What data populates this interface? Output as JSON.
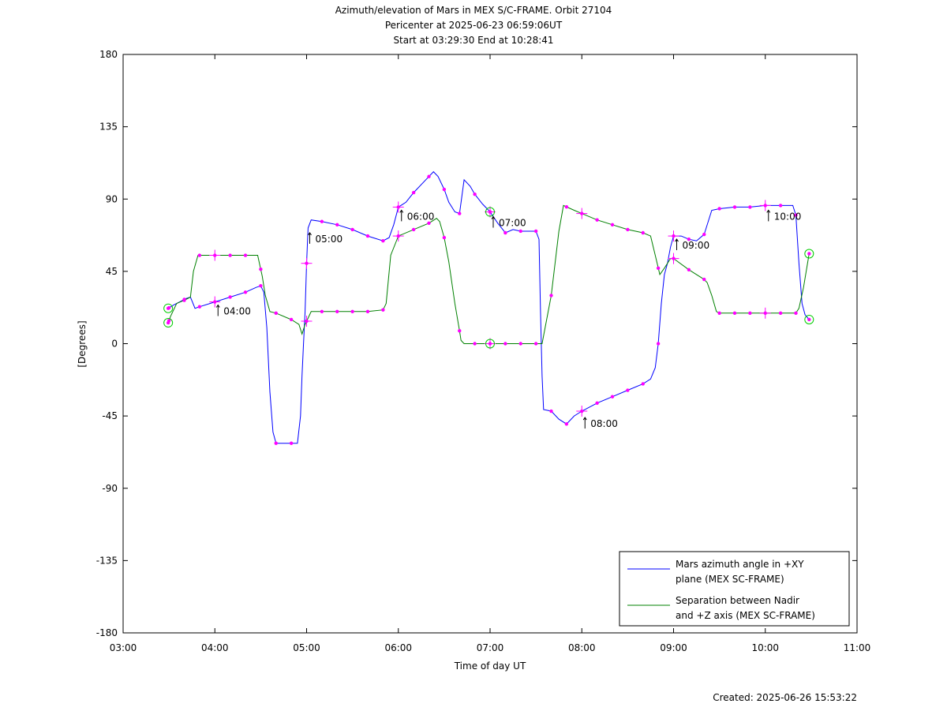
{
  "chart_data": {
    "type": "line",
    "title_lines": [
      "Azimuth/elevation of Mars in MEX S/C-FRAME.  Orbit 27104",
      "Pericenter at 2025-06-23 06:59:06UT",
      "Start at 03:29:30 End at 10:28:41"
    ],
    "xlabel": "Time of day UT",
    "ylabel": "[Degrees]",
    "footer": "Created: 2025-06-26 15:53:22",
    "xlim": [
      "03:00",
      "11:00"
    ],
    "ylim": [
      -180,
      180
    ],
    "x_ticks": [
      "03:00",
      "04:00",
      "05:00",
      "06:00",
      "07:00",
      "08:00",
      "09:00",
      "10:00",
      "11:00"
    ],
    "y_ticks": [
      180,
      135,
      90,
      45,
      0,
      -45,
      -90,
      -135,
      -180
    ],
    "grid": false,
    "legend_position": "bottom-right",
    "marker_color": "#ff00ff",
    "circle_marker_color": "#00cc00",
    "series": [
      {
        "name": "Mars azimuth angle in +XY plane (MEX SC-FRAME)",
        "legend_lines": [
          "Mars azimuth angle in +XY",
          "plane (MEX SC-FRAME)"
        ],
        "color": "#0000ff",
        "points": [
          [
            "03:29:30",
            22
          ],
          [
            "03:33",
            24
          ],
          [
            "03:37",
            26
          ],
          [
            "03:41",
            28
          ],
          [
            "03:44",
            29
          ],
          [
            "03:47",
            22
          ],
          [
            "03:50",
            23
          ],
          [
            "04:00",
            26
          ],
          [
            "04:10",
            29
          ],
          [
            "04:20",
            32
          ],
          [
            "04:27",
            35
          ],
          [
            "04:30",
            36
          ],
          [
            "04:32",
            32
          ],
          [
            "04:34",
            10
          ],
          [
            "04:36",
            -30
          ],
          [
            "04:38",
            -55
          ],
          [
            "04:40",
            -62
          ],
          [
            "04:50",
            -62
          ],
          [
            "04:54",
            -62
          ],
          [
            "04:56",
            -45
          ],
          [
            "04:57",
            -20
          ],
          [
            "04:58",
            0
          ],
          [
            "04:59",
            20
          ],
          [
            "05:00",
            50
          ],
          [
            "05:01",
            72
          ],
          [
            "05:03",
            77
          ],
          [
            "05:10",
            76
          ],
          [
            "05:20",
            74
          ],
          [
            "05:30",
            71
          ],
          [
            "05:40",
            67
          ],
          [
            "05:50",
            64
          ],
          [
            "05:54",
            66
          ],
          [
            "05:57",
            74
          ],
          [
            "06:00",
            85
          ],
          [
            "06:05",
            88
          ],
          [
            "06:10",
            94
          ],
          [
            "06:18",
            102
          ],
          [
            "06:23",
            107
          ],
          [
            "06:26",
            104
          ],
          [
            "06:30",
            96
          ],
          [
            "06:33",
            88
          ],
          [
            "06:37",
            82
          ],
          [
            "06:40",
            81
          ],
          [
            "06:43",
            102
          ],
          [
            "06:47",
            98
          ],
          [
            "06:50",
            93
          ],
          [
            "06:55",
            87
          ],
          [
            "07:00",
            82
          ],
          [
            "07:05",
            75
          ],
          [
            "07:10",
            69
          ],
          [
            "07:15",
            71
          ],
          [
            "07:20",
            70
          ],
          [
            "07:25",
            70
          ],
          [
            "07:30",
            70
          ],
          [
            "07:32",
            65
          ],
          [
            "07:33",
            20
          ],
          [
            "07:34",
            -20
          ],
          [
            "07:35",
            -41
          ],
          [
            "07:40",
            -42
          ],
          [
            "07:45",
            -47
          ],
          [
            "07:50",
            -50
          ],
          [
            "07:55",
            -45
          ],
          [
            "08:00",
            -42
          ],
          [
            "08:10",
            -37
          ],
          [
            "08:20",
            -33
          ],
          [
            "08:30",
            -29
          ],
          [
            "08:40",
            -25
          ],
          [
            "08:45",
            -22
          ],
          [
            "08:48",
            -15
          ],
          [
            "08:50",
            0
          ],
          [
            "08:52",
            25
          ],
          [
            "08:54",
            43
          ],
          [
            "08:56",
            50
          ],
          [
            "08:58",
            60
          ],
          [
            "09:00",
            67
          ],
          [
            "09:05",
            67
          ],
          [
            "09:10",
            65
          ],
          [
            "09:15",
            64
          ],
          [
            "09:20",
            68
          ],
          [
            "09:25",
            83
          ],
          [
            "09:30",
            84
          ],
          [
            "09:40",
            85
          ],
          [
            "09:50",
            85
          ],
          [
            "10:00",
            86
          ],
          [
            "10:10",
            86
          ],
          [
            "10:18",
            86
          ],
          [
            "10:20",
            80
          ],
          [
            "10:22",
            50
          ],
          [
            "10:24",
            25
          ],
          [
            "10:26",
            18
          ],
          [
            "10:28:41",
            15
          ]
        ],
        "markers": [
          "03:30",
          "03:40",
          "03:50",
          "04:00",
          "04:10",
          "04:20",
          "04:30",
          "04:40",
          "04:50",
          "05:00",
          "05:10",
          "05:20",
          "05:30",
          "05:40",
          "05:50",
          "06:00",
          "06:10",
          "06:20",
          "06:30",
          "06:40",
          "06:50",
          "07:00",
          "07:10",
          "07:20",
          "07:30",
          "07:40",
          "07:50",
          "08:00",
          "08:10",
          "08:20",
          "08:30",
          "08:40",
          "08:50",
          "09:00",
          "09:10",
          "09:20",
          "09:30",
          "09:40",
          "09:50",
          "10:00",
          "10:10",
          "10:20"
        ]
      },
      {
        "name": "Separation between Nadir and +Z axis (MEX SC-FRAME)",
        "legend_lines": [
          "Separation between Nadir",
          "and +Z axis (MEX SC-FRAME)"
        ],
        "color": "#008000",
        "points": [
          [
            "03:29:30",
            13
          ],
          [
            "03:31",
            17
          ],
          [
            "03:35",
            25
          ],
          [
            "03:40",
            27
          ],
          [
            "03:44",
            29
          ],
          [
            "03:46",
            45
          ],
          [
            "03:49",
            55
          ],
          [
            "04:00",
            55
          ],
          [
            "04:10",
            55
          ],
          [
            "04:20",
            55
          ],
          [
            "04:25",
            55
          ],
          [
            "04:28",
            55
          ],
          [
            "04:31",
            42
          ],
          [
            "04:33",
            30
          ],
          [
            "04:36",
            20
          ],
          [
            "04:40",
            19
          ],
          [
            "04:50",
            15
          ],
          [
            "04:55",
            12
          ],
          [
            "04:57",
            6
          ],
          [
            "04:59",
            12
          ],
          [
            "05:03",
            20
          ],
          [
            "05:10",
            20
          ],
          [
            "05:20",
            20
          ],
          [
            "05:30",
            20
          ],
          [
            "05:40",
            20
          ],
          [
            "05:50",
            21
          ],
          [
            "05:52",
            25
          ],
          [
            "05:55",
            55
          ],
          [
            "06:00",
            67
          ],
          [
            "06:10",
            71
          ],
          [
            "06:20",
            75
          ],
          [
            "06:25",
            78
          ],
          [
            "06:27",
            76
          ],
          [
            "06:30",
            66
          ],
          [
            "06:33",
            51
          ],
          [
            "06:37",
            25
          ],
          [
            "06:40",
            8
          ],
          [
            "06:41",
            2
          ],
          [
            "06:43",
            0
          ],
          [
            "06:50",
            0
          ],
          [
            "07:00",
            0
          ],
          [
            "07:10",
            0
          ],
          [
            "07:20",
            0
          ],
          [
            "07:30",
            0
          ],
          [
            "07:34",
            0
          ],
          [
            "07:37",
            15
          ],
          [
            "07:40",
            30
          ],
          [
            "07:45",
            70
          ],
          [
            "07:48",
            86
          ],
          [
            "07:55",
            83
          ],
          [
            "08:00",
            81
          ],
          [
            "08:10",
            77
          ],
          [
            "08:20",
            74
          ],
          [
            "08:30",
            71
          ],
          [
            "08:40",
            69
          ],
          [
            "08:45",
            67
          ],
          [
            "08:48",
            55
          ],
          [
            "08:51",
            43
          ],
          [
            "08:54",
            47
          ],
          [
            "08:58",
            53
          ],
          [
            "09:00",
            53
          ],
          [
            "09:10",
            46
          ],
          [
            "09:20",
            40
          ],
          [
            "09:22",
            38
          ],
          [
            "09:25",
            30
          ],
          [
            "09:28",
            20
          ],
          [
            "09:30",
            19
          ],
          [
            "09:40",
            19
          ],
          [
            "09:50",
            19
          ],
          [
            "10:00",
            19
          ],
          [
            "10:10",
            19
          ],
          [
            "10:20",
            19
          ],
          [
            "10:22",
            22
          ],
          [
            "10:25",
            35
          ],
          [
            "10:28:41",
            56
          ]
        ],
        "markers": [
          "03:30",
          "03:40",
          "03:50",
          "04:00",
          "04:10",
          "04:20",
          "04:30",
          "04:40",
          "04:50",
          "05:00",
          "05:10",
          "05:20",
          "05:30",
          "05:40",
          "05:50",
          "06:00",
          "06:10",
          "06:20",
          "06:30",
          "06:40",
          "06:50",
          "07:00",
          "07:10",
          "07:20",
          "07:30",
          "07:40",
          "07:50",
          "08:00",
          "08:10",
          "08:20",
          "08:30",
          "08:40",
          "08:50",
          "09:00",
          "09:10",
          "09:20",
          "09:30",
          "09:40",
          "09:50",
          "10:00",
          "10:10",
          "10:20"
        ]
      }
    ],
    "hour_markers": [
      "04:00",
      "05:00",
      "06:00",
      "07:00",
      "08:00",
      "09:00",
      "10:00"
    ],
    "annotations": [
      {
        "time": "04:00",
        "text": "04:00",
        "y": 27
      },
      {
        "time": "05:00",
        "text": "05:00",
        "y": 72
      },
      {
        "time": "06:00",
        "text": "06:00",
        "y": 86
      },
      {
        "time": "07:00",
        "text": "07:00",
        "y": 82
      },
      {
        "time": "08:00",
        "text": "08:00",
        "y": -43
      },
      {
        "time": "09:00",
        "text": "09:00",
        "y": 68
      },
      {
        "time": "10:00",
        "text": "10:00",
        "y": 86
      }
    ],
    "circle_markers": [
      {
        "time": "03:29:30",
        "y": 22
      },
      {
        "time": "03:29:30",
        "y": 13
      },
      {
        "time": "07:00",
        "y": 82
      },
      {
        "time": "07:00",
        "y": 0
      },
      {
        "time": "10:28:41",
        "y": 56
      },
      {
        "time": "10:28:41",
        "y": 15
      }
    ]
  }
}
